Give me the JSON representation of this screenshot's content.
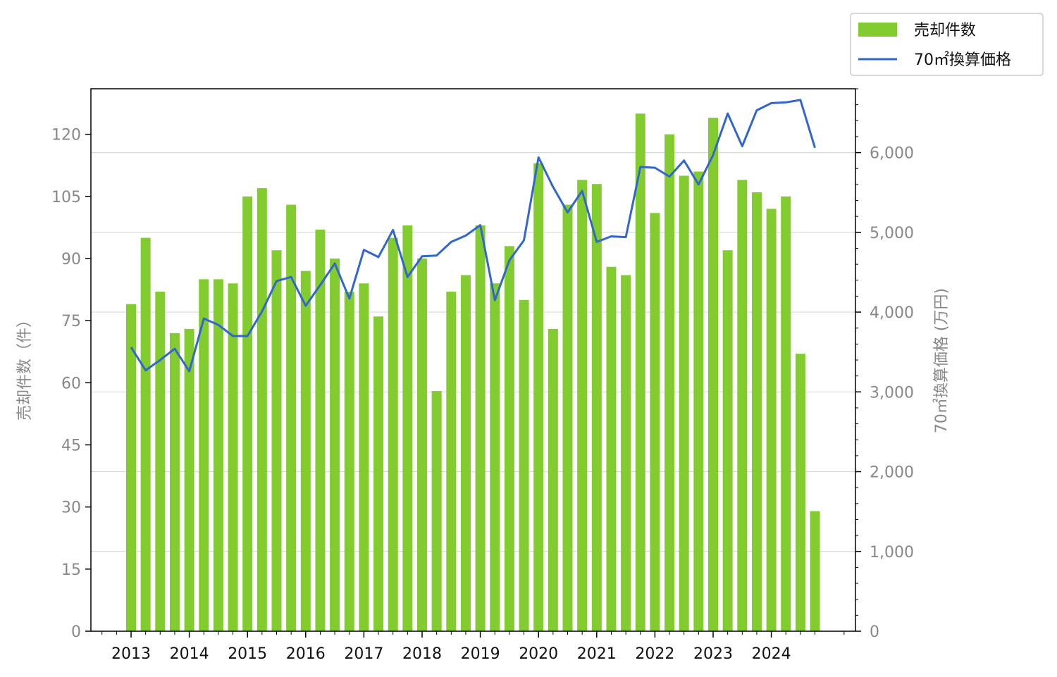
{
  "chart_data": {
    "type": "bar",
    "title": "",
    "xlabel": "",
    "ylabel": "売却件数（件）",
    "y2label": "70㎡換算価格 (万円)",
    "ylim": [
      0,
      131
    ],
    "y2lim": [
      0,
      6800
    ],
    "yticks": [
      0,
      15,
      30,
      45,
      60,
      75,
      90,
      105,
      120
    ],
    "ytick_labels": [
      "0",
      "15",
      "30",
      "45",
      "60",
      "75",
      "90",
      "105",
      "120"
    ],
    "y2ticks": [
      0,
      1000,
      2000,
      3000,
      4000,
      5000,
      6000
    ],
    "y2tick_labels": [
      "0",
      "1,000",
      "2,000",
      "3,000",
      "4,000",
      "5,000",
      "6,000"
    ],
    "year_labels": [
      "2013",
      "2014",
      "2015",
      "2016",
      "2017",
      "2018",
      "2019",
      "2020",
      "2021",
      "2022",
      "2023",
      "2024"
    ],
    "grid": "horizontal (secondary axis)",
    "legend_position": "top-right outside",
    "colors": {
      "bar": "#82cc30",
      "line": "#3366cc",
      "grid": "#d9d9d9"
    },
    "series": [
      {
        "name": "売却件数",
        "type": "bar",
        "axis": "left",
        "values": [
          79,
          95,
          82,
          72,
          73,
          85,
          85,
          84,
          105,
          107,
          92,
          103,
          87,
          97,
          90,
          82,
          84,
          76,
          95,
          98,
          90,
          58,
          82,
          86,
          98,
          84,
          93,
          80,
          113,
          73,
          103,
          109,
          108,
          88,
          86,
          125,
          101,
          120,
          110,
          111,
          124,
          92,
          109,
          106,
          102,
          105,
          67,
          29
        ]
      },
      {
        "name": "70㎡換算価格",
        "type": "line",
        "axis": "right",
        "values": [
          3560,
          3270,
          3400,
          3540,
          3260,
          3920,
          3840,
          3700,
          3700,
          4010,
          4390,
          4440,
          4080,
          4340,
          4610,
          4170,
          4780,
          4690,
          5030,
          4440,
          4700,
          4710,
          4880,
          4960,
          5090,
          4150,
          4650,
          4900,
          5940,
          5570,
          5250,
          5520,
          4880,
          4950,
          4940,
          5820,
          5810,
          5700,
          5900,
          5600,
          5970,
          6490,
          6080,
          6530,
          6620,
          6630,
          6660,
          6060
        ]
      }
    ]
  }
}
